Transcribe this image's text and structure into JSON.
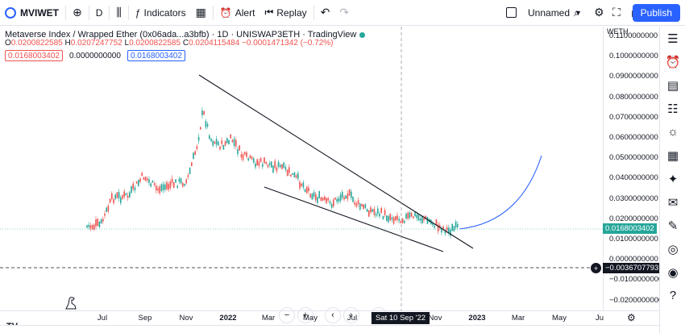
{
  "toolbar": {
    "symbol": "MVIWET",
    "interval": "D",
    "indicators_label": "Indicators",
    "alert_label": "Alert",
    "replay_label": "Replay",
    "layout_name": "Unnamed",
    "publish_label": "Publish"
  },
  "legend": {
    "title": "Metaverse Index / Wrapped Ether (0x06ada...a3bfb) · 1D · UNISWAP3ETH · TradingView",
    "open_label": "O",
    "open": "0.0200822585",
    "high_label": "H",
    "high": "0.0207247752",
    "low_label": "L",
    "low": "0.0200822585",
    "close_label": "C",
    "close": "0.0204115484",
    "change": "−0.0001471342 (−0.72%)",
    "bid": "0.0168003402",
    "spread": "0.0000000000",
    "ask": "0.0168003402"
  },
  "price_axis": {
    "currency": "WETH",
    "labels": [
      "0.1100000000",
      "0.1000000000",
      "0.0900000000",
      "0.0800000000",
      "0.0700000000",
      "0.0600000000",
      "0.0500000000",
      "0.0400000000",
      "0.0300000000",
      "0.0200000000",
      "0.0100000000",
      "0.0000000000",
      "−0.0100000000",
      "−0.0200000000"
    ],
    "last_price_tag": "0.0168003402",
    "crosshair_tag": "−0.0036707793"
  },
  "time_axis": {
    "labels": [
      {
        "text": "Jul",
        "bold": false
      },
      {
        "text": "Sep",
        "bold": false
      },
      {
        "text": "Nov",
        "bold": false
      },
      {
        "text": "2022",
        "bold": true
      },
      {
        "text": "Mar",
        "bold": false
      },
      {
        "text": "May",
        "bold": false
      },
      {
        "text": "Jul",
        "bold": false
      },
      {
        "text": "Nov",
        "bold": false
      },
      {
        "text": "2023",
        "bold": true
      },
      {
        "text": "Mar",
        "bold": false
      },
      {
        "text": "May",
        "bold": false
      },
      {
        "text": "Ju",
        "bold": false
      }
    ],
    "crosshair_date": "Sat 10 Sep '22"
  },
  "colors": {
    "accent": "#2962ff",
    "up": "#26a69a",
    "down": "#ef5350",
    "drawing": "#131722",
    "projection": "#2962ff"
  },
  "icons": {
    "right_toolbar": [
      "watchlist-icon",
      "alarm-clock-icon",
      "news-icon",
      "add-list-icon",
      "hotlist-icon",
      "calendar-grid-icon",
      "idea-bulb-icon",
      "chat-icon",
      "chats-icon",
      "broadcast-icon",
      "notifications-icon",
      "help-icon"
    ]
  }
}
